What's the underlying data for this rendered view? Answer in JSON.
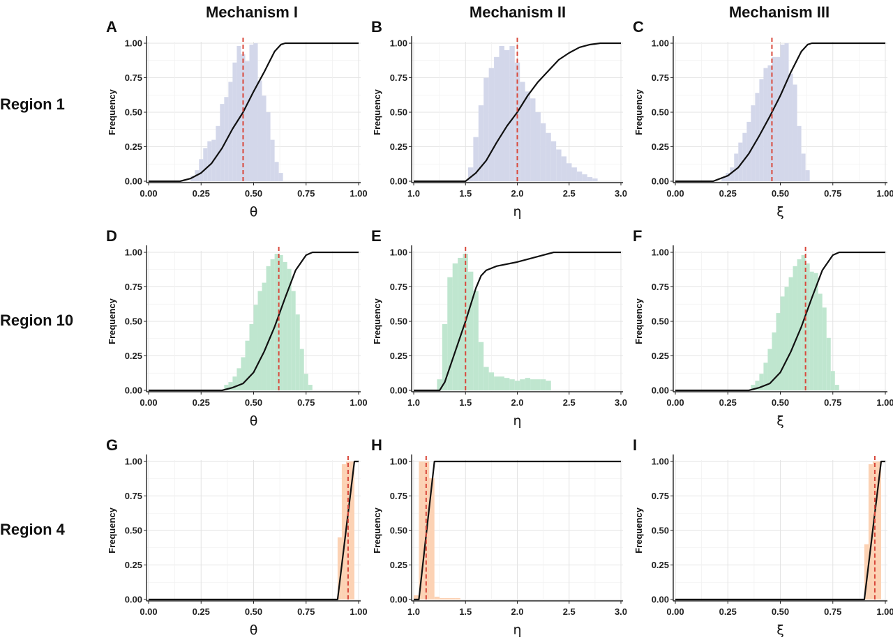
{
  "column_titles": [
    "Mechanism I",
    "Mechanism II",
    "Mechanism III"
  ],
  "row_titles": [
    "Region 1",
    "Region 10",
    "Region 4"
  ],
  "colors": {
    "row1": "#d3d7ea",
    "row2": "#bfe6cf",
    "row3": "#fcd2b4",
    "cdf": "#111111",
    "dashed": "#d9483b"
  },
  "chart_data": [
    {
      "type": "bar",
      "letter": "A",
      "row": 0,
      "col": 0,
      "xlabel": "θ",
      "ylabel": "Frequency",
      "xlim": [
        0.0,
        1.0
      ],
      "ylim": [
        0.0,
        1.0
      ],
      "xticks": [
        0.0,
        0.25,
        0.5,
        0.75,
        1.0
      ],
      "xtick_labels": [
        "0.00",
        "0.25",
        "0.50",
        "0.75",
        "1.00"
      ],
      "yticks": [
        0.0,
        0.25,
        0.5,
        0.75,
        1.0
      ],
      "ytick_labels": [
        "0.00",
        "0.25",
        "0.50",
        "0.75",
        "1.00"
      ],
      "hist_x": [
        0.21,
        0.23,
        0.25,
        0.27,
        0.29,
        0.31,
        0.33,
        0.35,
        0.37,
        0.39,
        0.41,
        0.43,
        0.45,
        0.47,
        0.49,
        0.51,
        0.53,
        0.55,
        0.57,
        0.59,
        0.61,
        0.63
      ],
      "hist_y": [
        0.04,
        0.08,
        0.16,
        0.24,
        0.29,
        0.3,
        0.4,
        0.56,
        0.61,
        0.72,
        0.86,
        0.98,
        0.92,
        0.87,
        0.99,
        1.0,
        0.73,
        0.62,
        0.5,
        0.3,
        0.14,
        0.06
      ],
      "bin_width": 0.02,
      "hist_color": "row1",
      "cdf_x": [
        0.0,
        0.15,
        0.2,
        0.25,
        0.3,
        0.35,
        0.4,
        0.45,
        0.5,
        0.55,
        0.6,
        0.63,
        0.65,
        1.0
      ],
      "cdf_y": [
        0.0,
        0.0,
        0.02,
        0.06,
        0.13,
        0.24,
        0.38,
        0.5,
        0.65,
        0.79,
        0.94,
        0.99,
        1.0,
        1.0
      ],
      "vline": 0.45
    },
    {
      "type": "bar",
      "letter": "B",
      "row": 0,
      "col": 1,
      "xlabel": "η",
      "ylabel": "Frequency",
      "xlim": [
        1.0,
        3.0
      ],
      "ylim": [
        0.0,
        1.0
      ],
      "xticks": [
        1.0,
        1.5,
        2.0,
        2.5,
        3.0
      ],
      "xtick_labels": [
        "1.0",
        "1.5",
        "2.0",
        "2.5",
        "3.0"
      ],
      "yticks": [
        0.0,
        0.25,
        0.5,
        0.75,
        1.0
      ],
      "ytick_labels": [
        "0.00",
        "0.25",
        "0.50",
        "0.75",
        "1.00"
      ],
      "hist_x": [
        1.55,
        1.6,
        1.65,
        1.7,
        1.75,
        1.8,
        1.85,
        1.9,
        1.95,
        2.0,
        2.05,
        2.1,
        2.15,
        2.2,
        2.25,
        2.3,
        2.35,
        2.4,
        2.45,
        2.5,
        2.55,
        2.6,
        2.65,
        2.7,
        2.75
      ],
      "hist_y": [
        0.1,
        0.32,
        0.55,
        0.75,
        0.82,
        0.9,
        0.98,
        0.95,
        0.98,
        0.86,
        0.72,
        0.65,
        0.6,
        0.5,
        0.42,
        0.35,
        0.29,
        0.23,
        0.18,
        0.13,
        0.1,
        0.07,
        0.05,
        0.03,
        0.02
      ],
      "bin_width": 0.05,
      "hist_color": "row1",
      "cdf_x": [
        1.0,
        1.5,
        1.6,
        1.7,
        1.8,
        1.9,
        2.0,
        2.1,
        2.2,
        2.3,
        2.4,
        2.5,
        2.6,
        2.7,
        2.8,
        3.0
      ],
      "cdf_y": [
        0.0,
        0.0,
        0.06,
        0.15,
        0.28,
        0.4,
        0.5,
        0.62,
        0.72,
        0.8,
        0.88,
        0.93,
        0.97,
        0.99,
        1.0,
        1.0
      ],
      "vline": 2.0
    },
    {
      "type": "bar",
      "letter": "C",
      "row": 0,
      "col": 2,
      "xlabel": "ξ",
      "ylabel": "Frequency",
      "xlim": [
        0.0,
        1.0
      ],
      "ylim": [
        0.0,
        1.0
      ],
      "xticks": [
        0.0,
        0.25,
        0.5,
        0.75,
        1.0
      ],
      "xtick_labels": [
        "0.00",
        "0.25",
        "0.50",
        "0.75",
        "1.00"
      ],
      "yticks": [
        0.0,
        0.25,
        0.5,
        0.75,
        1.0
      ],
      "ytick_labels": [
        "0.00",
        "0.25",
        "0.50",
        "0.75",
        "1.00"
      ],
      "hist_x": [
        0.23,
        0.25,
        0.27,
        0.29,
        0.31,
        0.33,
        0.35,
        0.37,
        0.39,
        0.41,
        0.43,
        0.45,
        0.47,
        0.49,
        0.51,
        0.53,
        0.55,
        0.57,
        0.59,
        0.61,
        0.63
      ],
      "hist_y": [
        0.03,
        0.06,
        0.1,
        0.2,
        0.28,
        0.35,
        0.43,
        0.55,
        0.64,
        0.74,
        0.82,
        0.84,
        0.9,
        0.9,
        0.99,
        1.0,
        0.78,
        0.7,
        0.4,
        0.2,
        0.08
      ],
      "bin_width": 0.02,
      "hist_color": "row1",
      "cdf_x": [
        0.0,
        0.18,
        0.25,
        0.3,
        0.35,
        0.4,
        0.45,
        0.5,
        0.55,
        0.6,
        0.63,
        0.65,
        1.0
      ],
      "cdf_y": [
        0.0,
        0.0,
        0.04,
        0.1,
        0.2,
        0.33,
        0.47,
        0.62,
        0.79,
        0.94,
        0.99,
        1.0,
        1.0
      ],
      "vline": 0.46
    },
    {
      "type": "bar",
      "letter": "D",
      "row": 1,
      "col": 0,
      "xlabel": "θ",
      "ylabel": "Frequency",
      "xlim": [
        0.0,
        1.0
      ],
      "ylim": [
        0.0,
        1.0
      ],
      "xticks": [
        0.0,
        0.25,
        0.5,
        0.75,
        1.0
      ],
      "xtick_labels": [
        "0.00",
        "0.25",
        "0.50",
        "0.75",
        "1.00"
      ],
      "yticks": [
        0.0,
        0.25,
        0.5,
        0.75,
        1.0
      ],
      "ytick_labels": [
        "0.00",
        "0.25",
        "0.50",
        "0.75",
        "1.00"
      ],
      "hist_x": [
        0.37,
        0.39,
        0.41,
        0.43,
        0.45,
        0.47,
        0.49,
        0.51,
        0.53,
        0.55,
        0.57,
        0.59,
        0.61,
        0.63,
        0.65,
        0.67,
        0.69,
        0.71,
        0.73,
        0.75,
        0.77
      ],
      "hist_y": [
        0.04,
        0.06,
        0.1,
        0.16,
        0.24,
        0.36,
        0.48,
        0.62,
        0.72,
        0.78,
        0.9,
        0.95,
        0.99,
        0.98,
        0.93,
        0.88,
        0.72,
        0.55,
        0.3,
        0.12,
        0.04
      ],
      "bin_width": 0.02,
      "hist_color": "row2",
      "cdf_x": [
        0.0,
        0.35,
        0.4,
        0.45,
        0.5,
        0.55,
        0.6,
        0.65,
        0.7,
        0.75,
        0.78,
        1.0
      ],
      "cdf_y": [
        0.0,
        0.0,
        0.02,
        0.05,
        0.13,
        0.28,
        0.46,
        0.67,
        0.87,
        0.98,
        1.0,
        1.0
      ],
      "vline": 0.62
    },
    {
      "type": "bar",
      "letter": "E",
      "row": 1,
      "col": 1,
      "xlabel": "η",
      "ylabel": "Frequency",
      "xlim": [
        1.0,
        3.0
      ],
      "ylim": [
        0.0,
        1.0
      ],
      "xticks": [
        1.0,
        1.5,
        2.0,
        2.5,
        3.0
      ],
      "xtick_labels": [
        "1.0",
        "1.5",
        "2.0",
        "2.5",
        "3.0"
      ],
      "yticks": [
        0.0,
        0.25,
        0.5,
        0.75,
        1.0
      ],
      "ytick_labels": [
        "0.00",
        "0.25",
        "0.50",
        "0.75",
        "1.00"
      ],
      "hist_x": [
        1.25,
        1.3,
        1.35,
        1.4,
        1.45,
        1.5,
        1.55,
        1.6,
        1.65,
        1.7,
        1.75,
        1.8,
        1.85,
        1.9,
        1.95,
        2.0,
        2.05,
        2.1,
        2.15,
        2.2,
        2.25,
        2.3
      ],
      "hist_y": [
        0.08,
        0.48,
        0.82,
        0.92,
        0.96,
        0.99,
        0.86,
        0.72,
        0.35,
        0.17,
        0.13,
        0.1,
        0.1,
        0.09,
        0.08,
        0.07,
        0.08,
        0.09,
        0.08,
        0.08,
        0.08,
        0.07
      ],
      "bin_width": 0.05,
      "hist_color": "row2",
      "cdf_x": [
        1.0,
        1.25,
        1.3,
        1.4,
        1.5,
        1.6,
        1.65,
        1.7,
        1.8,
        2.0,
        2.2,
        2.35,
        3.0
      ],
      "cdf_y": [
        0.0,
        0.0,
        0.06,
        0.28,
        0.5,
        0.74,
        0.83,
        0.87,
        0.9,
        0.93,
        0.97,
        1.0,
        1.0
      ],
      "vline": 1.5
    },
    {
      "type": "bar",
      "letter": "F",
      "row": 1,
      "col": 2,
      "xlabel": "ξ",
      "ylabel": "Frequency",
      "xlim": [
        0.0,
        1.0
      ],
      "ylim": [
        0.0,
        1.0
      ],
      "xticks": [
        0.0,
        0.25,
        0.5,
        0.75,
        1.0
      ],
      "xtick_labels": [
        "0.00",
        "0.25",
        "0.50",
        "0.75",
        "1.00"
      ],
      "yticks": [
        0.0,
        0.25,
        0.5,
        0.75,
        1.0
      ],
      "ytick_labels": [
        "0.00",
        "0.25",
        "0.50",
        "0.75",
        "1.00"
      ],
      "hist_x": [
        0.37,
        0.39,
        0.41,
        0.43,
        0.45,
        0.47,
        0.49,
        0.51,
        0.53,
        0.55,
        0.57,
        0.59,
        0.61,
        0.63,
        0.65,
        0.67,
        0.69,
        0.71,
        0.73,
        0.75,
        0.77
      ],
      "hist_y": [
        0.04,
        0.07,
        0.12,
        0.2,
        0.3,
        0.42,
        0.56,
        0.68,
        0.75,
        0.82,
        0.9,
        0.95,
        0.98,
        0.92,
        0.86,
        0.85,
        0.7,
        0.6,
        0.38,
        0.14,
        0.04
      ],
      "bin_width": 0.02,
      "hist_color": "row2",
      "cdf_x": [
        0.0,
        0.35,
        0.4,
        0.45,
        0.5,
        0.55,
        0.6,
        0.65,
        0.7,
        0.75,
        0.78,
        1.0
      ],
      "cdf_y": [
        0.0,
        0.0,
        0.02,
        0.05,
        0.13,
        0.28,
        0.46,
        0.67,
        0.87,
        0.98,
        1.0,
        1.0
      ],
      "vline": 0.62
    },
    {
      "type": "bar",
      "letter": "G",
      "row": 2,
      "col": 0,
      "xlabel": "θ",
      "ylabel": "Frequency",
      "xlim": [
        0.0,
        1.0
      ],
      "ylim": [
        0.0,
        1.0
      ],
      "xticks": [
        0.0,
        0.25,
        0.5,
        0.75,
        1.0
      ],
      "xtick_labels": [
        "0.00",
        "0.25",
        "0.50",
        "0.75",
        "1.00"
      ],
      "yticks": [
        0.0,
        0.25,
        0.5,
        0.75,
        1.0
      ],
      "ytick_labels": [
        "0.00",
        "0.25",
        "0.50",
        "0.75",
        "1.00"
      ],
      "hist_x": [
        0.91,
        0.93,
        0.95,
        0.97
      ],
      "hist_y": [
        0.45,
        0.98,
        1.0,
        1.0
      ],
      "bin_width": 0.02,
      "hist_color": "row3",
      "cdf_x": [
        0.0,
        0.9,
        0.98,
        1.0
      ],
      "cdf_y": [
        0.0,
        0.0,
        1.0,
        1.0
      ],
      "vline": 0.95
    },
    {
      "type": "bar",
      "letter": "H",
      "row": 2,
      "col": 1,
      "xlabel": "η",
      "ylabel": "Frequency",
      "xlim": [
        1.0,
        3.0
      ],
      "ylim": [
        0.0,
        1.0
      ],
      "xticks": [
        1.0,
        1.5,
        2.0,
        2.5,
        3.0
      ],
      "xtick_labels": [
        "1.0",
        "1.5",
        "2.0",
        "2.5",
        "3.0"
      ],
      "yticks": [
        0.0,
        0.25,
        0.5,
        0.75,
        1.0
      ],
      "ytick_labels": [
        "0.00",
        "0.25",
        "0.50",
        "0.75",
        "1.00"
      ],
      "hist_x": [
        1.025,
        1.075,
        1.125,
        1.175,
        1.225,
        1.275,
        1.325,
        1.375,
        1.425
      ],
      "hist_y": [
        0.03,
        1.0,
        1.0,
        0.88,
        0.02,
        0.01,
        0.01,
        0.01,
        0.01
      ],
      "bin_width": 0.05,
      "hist_color": "row3",
      "cdf_x": [
        1.0,
        1.05,
        1.2,
        1.3,
        3.0
      ],
      "cdf_y": [
        0.0,
        0.0,
        1.0,
        1.0,
        1.0
      ],
      "vline": 1.12
    },
    {
      "type": "bar",
      "letter": "I",
      "row": 2,
      "col": 2,
      "xlabel": "ξ",
      "ylabel": "Frequency",
      "xlim": [
        0.0,
        1.0
      ],
      "ylim": [
        0.0,
        1.0
      ],
      "xticks": [
        0.0,
        0.25,
        0.5,
        0.75,
        1.0
      ],
      "xtick_labels": [
        "0.00",
        "0.25",
        "0.50",
        "0.75",
        "1.00"
      ],
      "yticks": [
        0.0,
        0.25,
        0.5,
        0.75,
        1.0
      ],
      "ytick_labels": [
        "0.00",
        "0.25",
        "0.50",
        "0.75",
        "1.00"
      ],
      "hist_x": [
        0.91,
        0.93,
        0.95,
        0.97
      ],
      "hist_y": [
        0.4,
        0.98,
        1.0,
        1.0
      ],
      "bin_width": 0.02,
      "hist_color": "row3",
      "cdf_x": [
        0.0,
        0.9,
        0.98,
        1.0
      ],
      "cdf_y": [
        0.0,
        0.0,
        1.0,
        1.0
      ],
      "vline": 0.95
    }
  ]
}
